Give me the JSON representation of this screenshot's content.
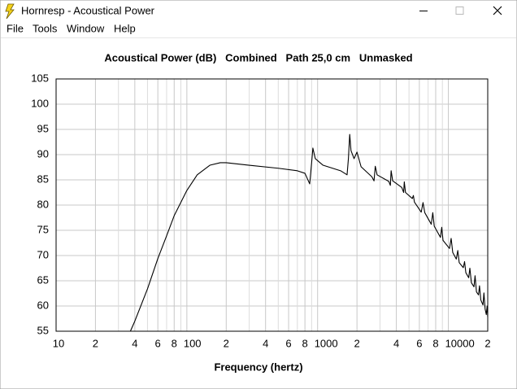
{
  "window": {
    "title": "Hornresp - Acoustical Power"
  },
  "menu": [
    "File",
    "Tools",
    "Window",
    "Help"
  ],
  "chart_data": {
    "type": "line",
    "title": "Acoustical Power (dB)   Combined   Path 25,0 cm   Unmasked",
    "x_label": "Frequency (hertz)",
    "x": [
      37,
      40,
      50,
      60,
      70,
      80,
      100,
      120,
      150,
      180,
      200,
      300,
      500,
      700,
      800,
      870,
      900,
      920,
      960,
      1100,
      1500,
      1680,
      1720,
      1760,
      1800,
      1900,
      2000,
      2150,
      2600,
      2700,
      2760,
      2850,
      3500,
      3600,
      3650,
      3750,
      4400,
      4550,
      4600,
      4700,
      5300,
      5400,
      5500,
      6200,
      6400,
      6600,
      7400,
      7600,
      7800,
      8700,
      8900,
      9100,
      10200,
      10500,
      10800,
      11500,
      11800,
      12100,
      13000,
      13300,
      13600,
      14300,
      14600,
      15000,
      15700,
      16000,
      16400,
      17000,
      17300,
      17700,
      18400,
      18700,
      19100,
      19500,
      19800,
      20000
    ],
    "series": [
      {
        "color": "#000000",
        "values": [
          55,
          57,
          63.4,
          69.4,
          73.9,
          77.9,
          82.9,
          86,
          87.9,
          88.4,
          88.4,
          87.9,
          87.3,
          86.8,
          86.3,
          84.2,
          88.4,
          91.3,
          89.2,
          87.9,
          86.8,
          86,
          89.2,
          94,
          90.8,
          89.2,
          90.5,
          87.6,
          85.6,
          84.8,
          87.7,
          86,
          84.7,
          83.9,
          86.8,
          84.8,
          83.5,
          82.5,
          84.6,
          82.5,
          81.3,
          81.9,
          80.6,
          78.6,
          80.5,
          78.5,
          76.2,
          78.5,
          75.8,
          73.6,
          75.6,
          73,
          71.4,
          73.4,
          70.6,
          69.3,
          71,
          68.6,
          67.6,
          68.8,
          66.6,
          65.6,
          67.5,
          64.6,
          63.8,
          66,
          62.8,
          62.2,
          64,
          61.2,
          60.2,
          62.6,
          59.4,
          58.3,
          60,
          57.8
        ]
      }
    ],
    "xlim": [
      10,
      20000
    ],
    "ylim": [
      55,
      105
    ],
    "log_x": true,
    "grid": true,
    "xticks": [
      10,
      {
        "value": 20,
        "label": "2"
      },
      {
        "value": 40,
        "label": "4"
      },
      {
        "value": 60,
        "label": "6"
      },
      {
        "value": 80,
        "label": "8"
      },
      100,
      {
        "value": 200,
        "label": "2"
      },
      {
        "value": 400,
        "label": "4"
      },
      {
        "value": 600,
        "label": "6"
      },
      {
        "value": 800,
        "label": "8"
      },
      1000,
      {
        "value": 2000,
        "label": "2"
      },
      {
        "value": 4000,
        "label": "4"
      },
      {
        "value": 6000,
        "label": "6"
      },
      {
        "value": 8000,
        "label": "8"
      },
      10000,
      {
        "value": 20000,
        "label": "2"
      }
    ],
    "x_minor_ticks": [
      30,
      50,
      70,
      90,
      300,
      500,
      700,
      900,
      3000,
      5000,
      7000,
      9000
    ],
    "yticks": [
      55,
      60,
      65,
      70,
      75,
      80,
      85,
      90,
      95,
      100,
      105
    ]
  }
}
